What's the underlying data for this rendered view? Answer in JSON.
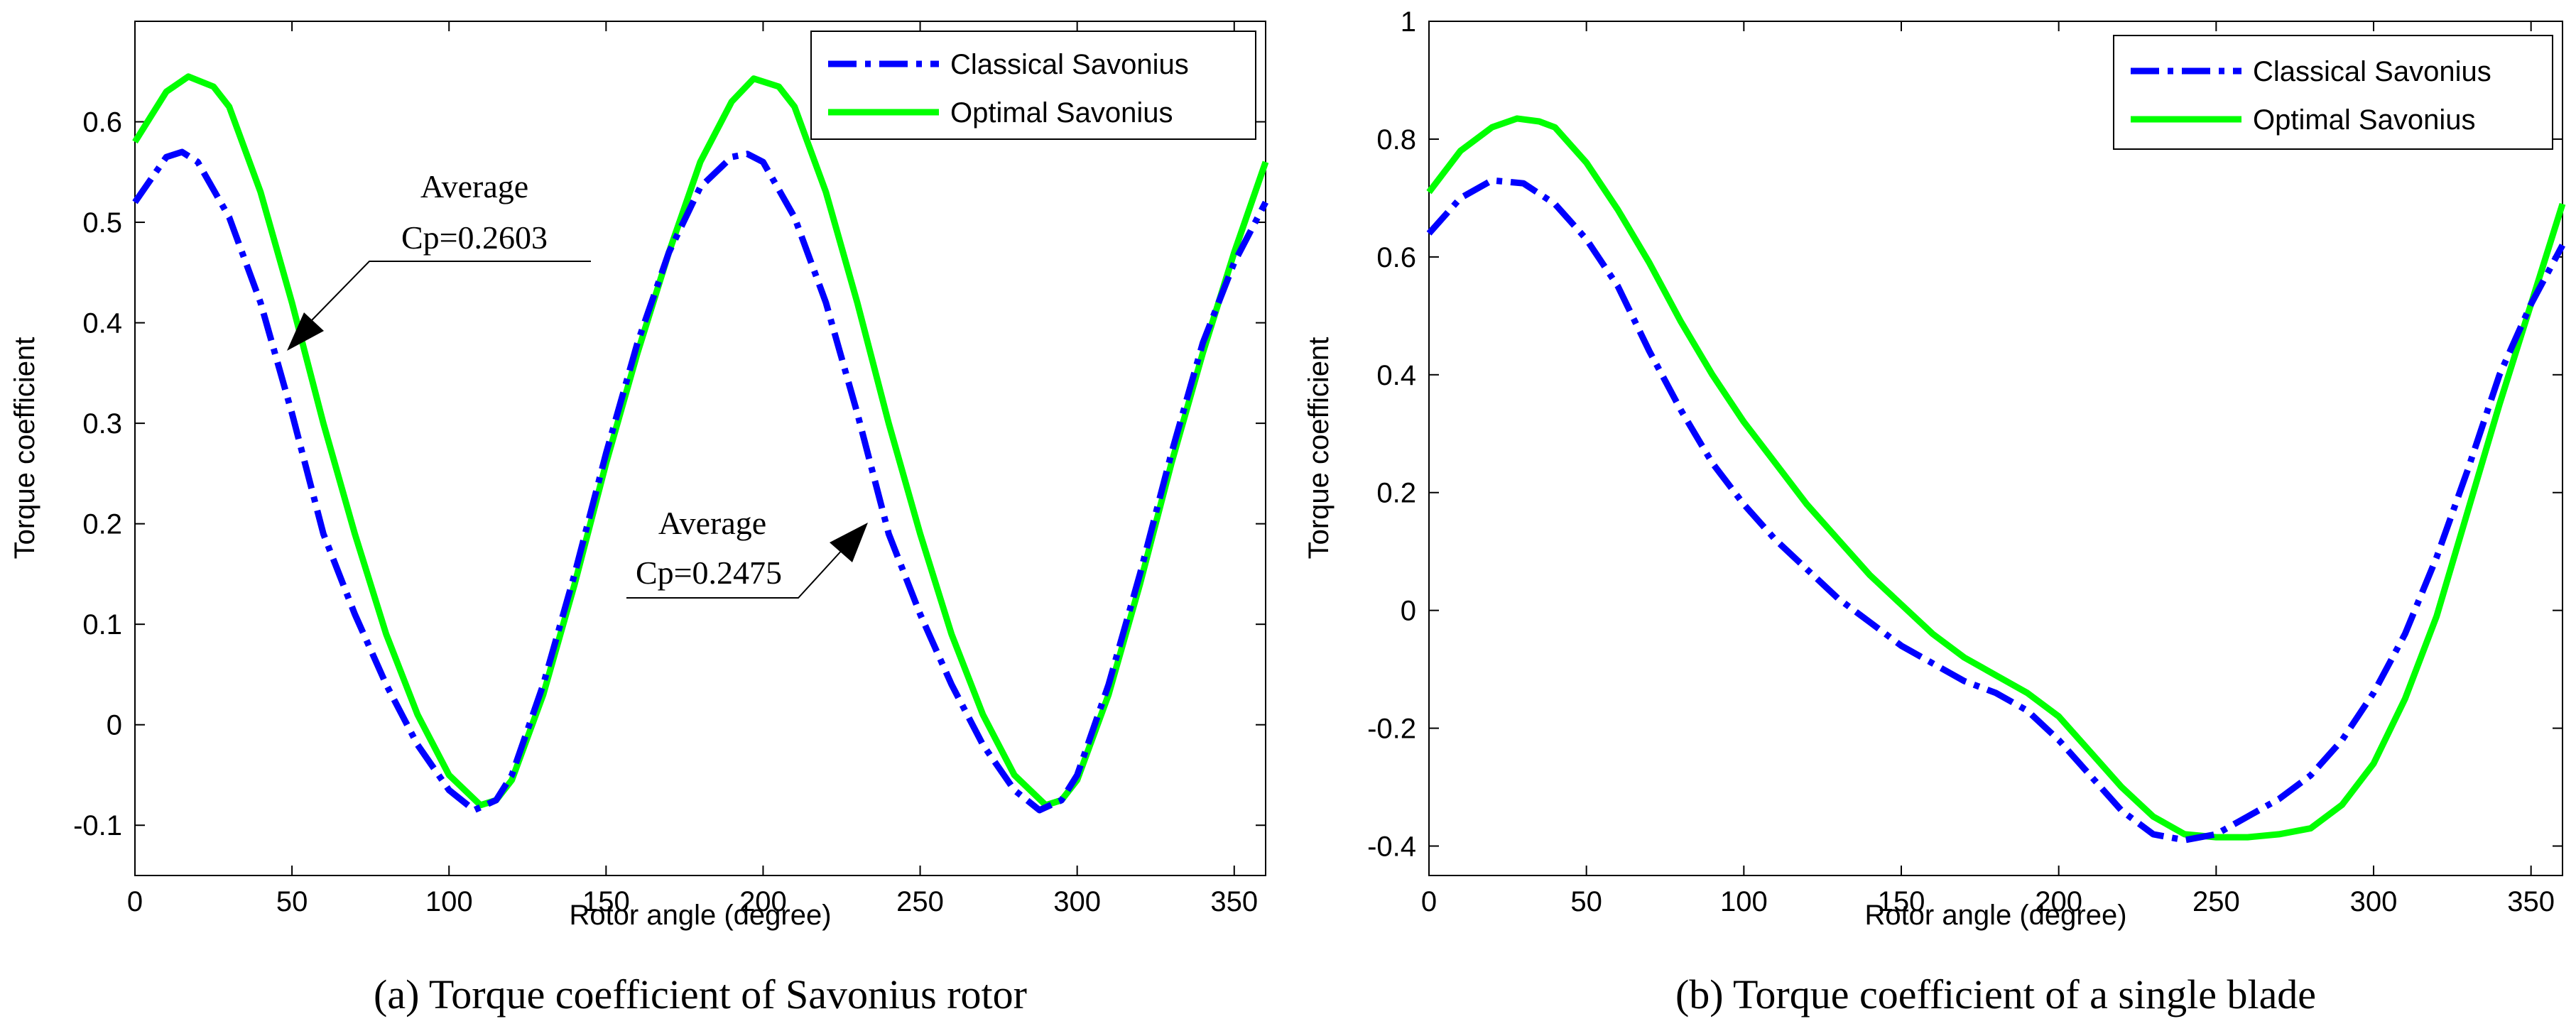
{
  "chart_data": [
    {
      "type": "line",
      "title": "",
      "xlabel": "Rotor angle (degree)",
      "ylabel": "Torque coefficient",
      "xlim": [
        0,
        360
      ],
      "ylim": [
        -0.15,
        0.7
      ],
      "xticks": [
        0,
        50,
        100,
        150,
        200,
        250,
        300,
        350
      ],
      "yticks": [
        -0.1,
        0,
        0.1,
        0.2,
        0.3,
        0.4,
        0.5,
        0.6
      ],
      "legend_position": "top-right",
      "caption": "(a) Torque coefficient of Savonius rotor",
      "annotations": [
        {
          "line1": "Average",
          "line2": "Cp=0.2603",
          "target": [
            50,
            0.35
          ]
        },
        {
          "line1": "Average",
          "line2": "Cp=0.2475",
          "target": [
            230,
            0.2
          ]
        }
      ],
      "series": [
        {
          "name": "Classical Savonius",
          "color": "#0000ff",
          "style": "dashdot",
          "x": [
            0,
            10,
            15,
            20,
            30,
            40,
            50,
            60,
            70,
            80,
            90,
            100,
            108,
            115,
            120,
            130,
            140,
            150,
            160,
            170,
            180,
            190,
            195,
            200,
            210,
            220,
            230,
            240,
            250,
            260,
            270,
            280,
            288,
            295,
            300,
            310,
            320,
            330,
            340,
            350,
            360
          ],
          "values": [
            0.52,
            0.565,
            0.57,
            0.56,
            0.505,
            0.42,
            0.31,
            0.19,
            0.11,
            0.04,
            -0.02,
            -0.065,
            -0.085,
            -0.075,
            -0.05,
            0.04,
            0.15,
            0.27,
            0.38,
            0.47,
            0.535,
            0.565,
            0.568,
            0.56,
            0.505,
            0.42,
            0.31,
            0.19,
            0.11,
            0.04,
            -0.02,
            -0.065,
            -0.085,
            -0.075,
            -0.05,
            0.04,
            0.15,
            0.27,
            0.38,
            0.46,
            0.52
          ]
        },
        {
          "name": "Optimal Savonius",
          "color": "#00ff00",
          "style": "solid",
          "x": [
            0,
            10,
            17,
            25,
            30,
            40,
            50,
            60,
            70,
            80,
            90,
            100,
            110,
            115,
            120,
            130,
            140,
            150,
            160,
            170,
            180,
            190,
            197,
            205,
            210,
            220,
            230,
            240,
            250,
            260,
            270,
            280,
            290,
            295,
            300,
            310,
            320,
            330,
            340,
            350,
            360
          ],
          "values": [
            0.58,
            0.63,
            0.645,
            0.635,
            0.615,
            0.53,
            0.42,
            0.3,
            0.19,
            0.09,
            0.01,
            -0.05,
            -0.08,
            -0.075,
            -0.055,
            0.03,
            0.14,
            0.26,
            0.37,
            0.47,
            0.56,
            0.62,
            0.643,
            0.635,
            0.615,
            0.53,
            0.42,
            0.3,
            0.19,
            0.09,
            0.01,
            -0.05,
            -0.08,
            -0.075,
            -0.055,
            0.03,
            0.14,
            0.26,
            0.37,
            0.47,
            0.56
          ]
        }
      ]
    },
    {
      "type": "line",
      "title": "",
      "xlabel": "Rotor angle (degree)",
      "ylabel": "Torque coefficient",
      "xlim": [
        0,
        360
      ],
      "ylim": [
        -0.45,
        1
      ],
      "xticks": [
        0,
        50,
        100,
        150,
        200,
        250,
        300,
        350
      ],
      "yticks": [
        -0.4,
        -0.2,
        0,
        0.2,
        0.4,
        0.6,
        0.8,
        1
      ],
      "legend_position": "top-right",
      "caption": "(b) Torque coefficient of a single blade",
      "series": [
        {
          "name": "Classical Savonius",
          "color": "#0000ff",
          "style": "dashdot",
          "x": [
            0,
            10,
            20,
            30,
            40,
            50,
            60,
            70,
            80,
            90,
            100,
            110,
            120,
            130,
            140,
            150,
            160,
            170,
            180,
            190,
            200,
            210,
            220,
            230,
            240,
            250,
            260,
            270,
            280,
            290,
            300,
            310,
            320,
            330,
            340,
            350,
            360
          ],
          "values": [
            0.64,
            0.7,
            0.73,
            0.725,
            0.69,
            0.63,
            0.55,
            0.44,
            0.34,
            0.25,
            0.18,
            0.12,
            0.07,
            0.02,
            -0.02,
            -0.06,
            -0.09,
            -0.12,
            -0.14,
            -0.17,
            -0.22,
            -0.28,
            -0.34,
            -0.38,
            -0.39,
            -0.38,
            -0.35,
            -0.32,
            -0.28,
            -0.22,
            -0.14,
            -0.04,
            0.09,
            0.24,
            0.4,
            0.52,
            0.62
          ]
        },
        {
          "name": "Optimal Savonius",
          "color": "#00ff00",
          "style": "solid",
          "x": [
            0,
            10,
            20,
            28,
            35,
            40,
            50,
            60,
            70,
            80,
            90,
            100,
            110,
            120,
            130,
            140,
            150,
            160,
            170,
            180,
            190,
            200,
            210,
            220,
            230,
            240,
            250,
            260,
            270,
            280,
            290,
            300,
            310,
            320,
            330,
            340,
            350,
            360
          ],
          "values": [
            0.71,
            0.78,
            0.82,
            0.835,
            0.83,
            0.82,
            0.76,
            0.68,
            0.59,
            0.49,
            0.4,
            0.32,
            0.25,
            0.18,
            0.12,
            0.06,
            0.01,
            -0.04,
            -0.08,
            -0.11,
            -0.14,
            -0.18,
            -0.24,
            -0.3,
            -0.35,
            -0.38,
            -0.385,
            -0.385,
            -0.38,
            -0.37,
            -0.33,
            -0.26,
            -0.15,
            -0.01,
            0.17,
            0.35,
            0.52,
            0.69
          ]
        }
      ]
    }
  ]
}
